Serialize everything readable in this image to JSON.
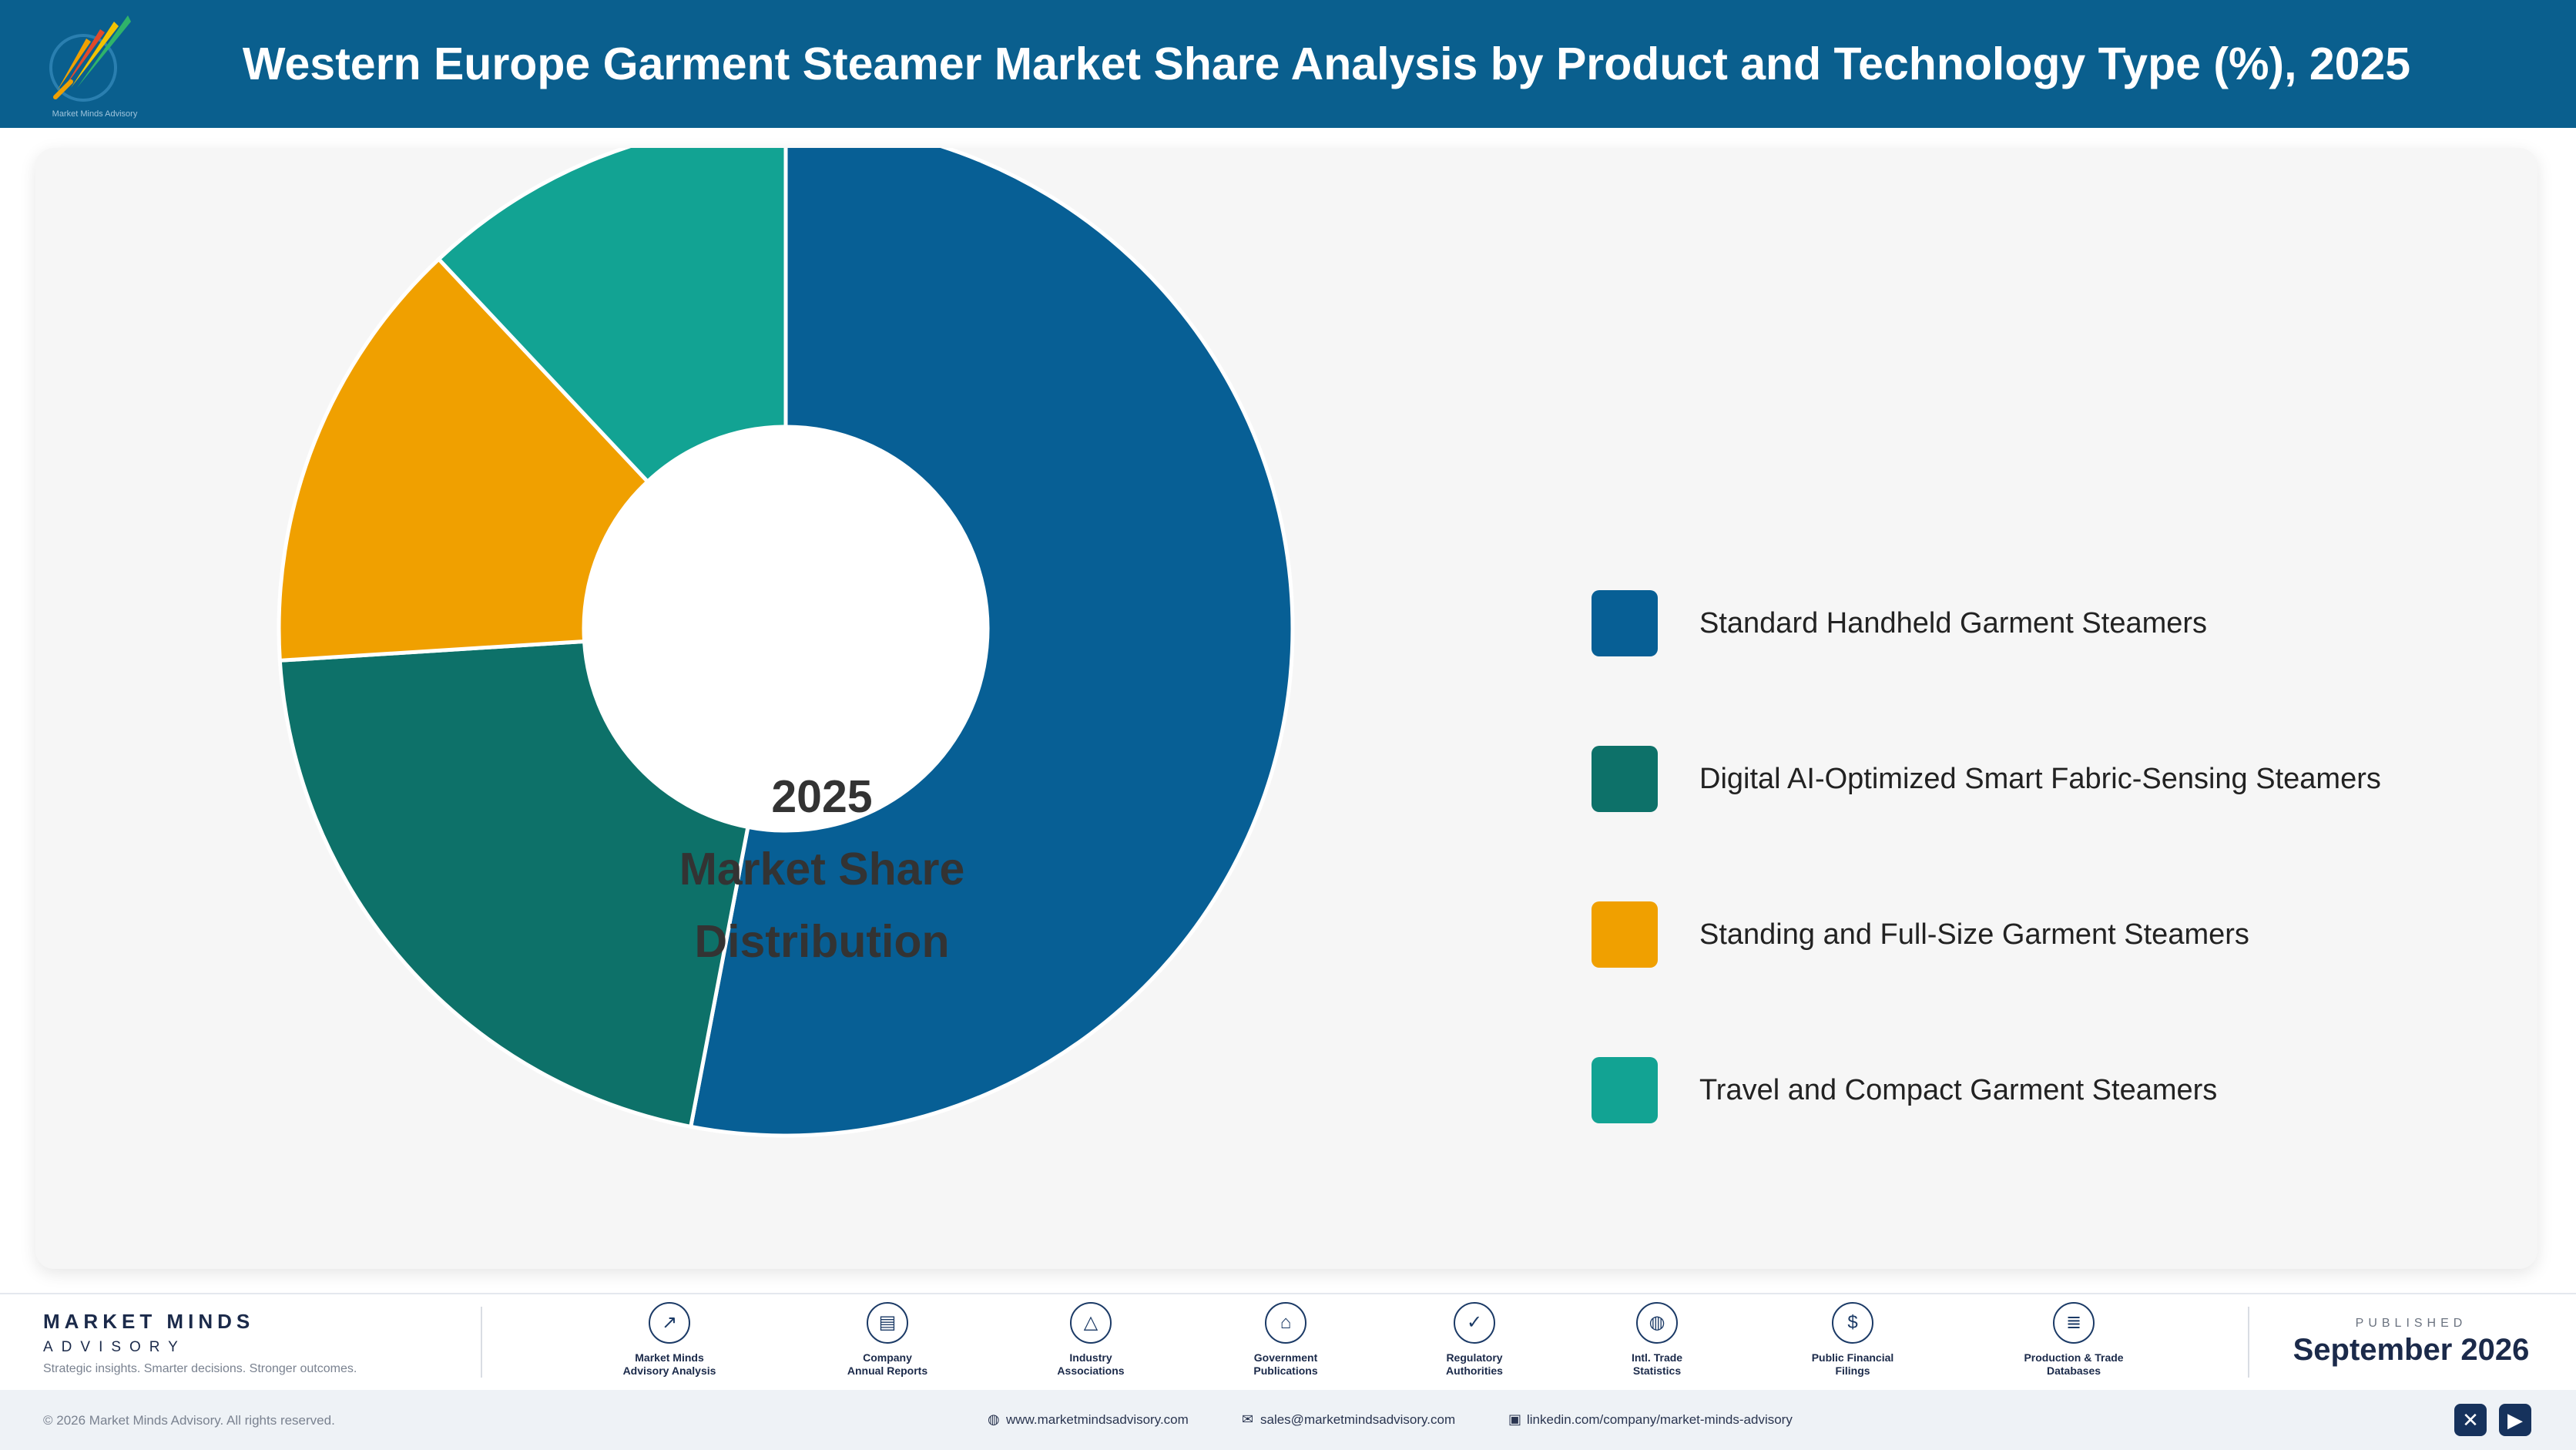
{
  "header": {
    "title": "Western Europe Garment Steamer Market Share Analysis by Product and Technology Type (%), 2025",
    "logo_icon": "market-minds-logo",
    "logo_caption": "Market Minds Advisory",
    "background_color": "#0a5f8e"
  },
  "chart_data": {
    "type": "pie",
    "variant": "donut",
    "title": "Western Europe Garment Steamer Market Share Analysis by Product and Technology Type (%), 2025",
    "center_label": [
      "2025",
      "Market Share",
      "Distribution"
    ],
    "unit": "%",
    "categories": [
      "Standard Handheld Garment Steamers",
      "Digital AI-Optimized Smart Fabric-Sensing Steamers",
      "Standing and Full-Size Garment Steamers",
      "Travel and Compact Garment Steamers"
    ],
    "values": [
      53,
      21,
      14,
      12
    ],
    "colors": [
      "#075f95",
      "#0d7169",
      "#f0a000",
      "#12a393"
    ],
    "start_angle_deg": 0,
    "direction": "clockwise",
    "legend_position": "right"
  },
  "footer": {
    "brand_name": "MARKET MINDS",
    "brand_sub": "ADVISORY",
    "tagline": "Strategic insights. Smarter decisions. Stronger outcomes.",
    "sources": [
      {
        "icon": "trend-line-icon",
        "glyph": "↗",
        "line1": "Market Minds",
        "line2": "Advisory Analysis"
      },
      {
        "icon": "document-icon",
        "glyph": "▤",
        "line1": "Company",
        "line2": "Annual Reports"
      },
      {
        "icon": "network-icon",
        "glyph": "△",
        "line1": "Industry",
        "line2": "Associations"
      },
      {
        "icon": "government-building-icon",
        "glyph": "⌂",
        "line1": "Government",
        "line2": "Publications"
      },
      {
        "icon": "shield-check-icon",
        "glyph": "✓",
        "line1": "Regulatory",
        "line2": "Authorities"
      },
      {
        "icon": "globe-icon",
        "glyph": "◍",
        "line1": "Intl. Trade",
        "line2": "Statistics"
      },
      {
        "icon": "dollar-coin-icon",
        "glyph": "$",
        "line1": "Public Financial",
        "line2": "Filings"
      },
      {
        "icon": "database-icon",
        "glyph": "≣",
        "line1": "Production & Trade",
        "line2": "Databases"
      }
    ],
    "published_label": "PUBLISHED",
    "published_date": "September 2026",
    "copyright": "© 2026 Market Minds Advisory. All rights reserved.",
    "website": "www.marketmindsadvisory.com",
    "email": "sales@marketmindsadvisory.com",
    "linkedin": "linkedin.com/company/market-minds-advisory",
    "social": [
      {
        "icon": "x-icon",
        "glyph": "✕"
      },
      {
        "icon": "youtube-icon",
        "glyph": "▶"
      }
    ]
  }
}
